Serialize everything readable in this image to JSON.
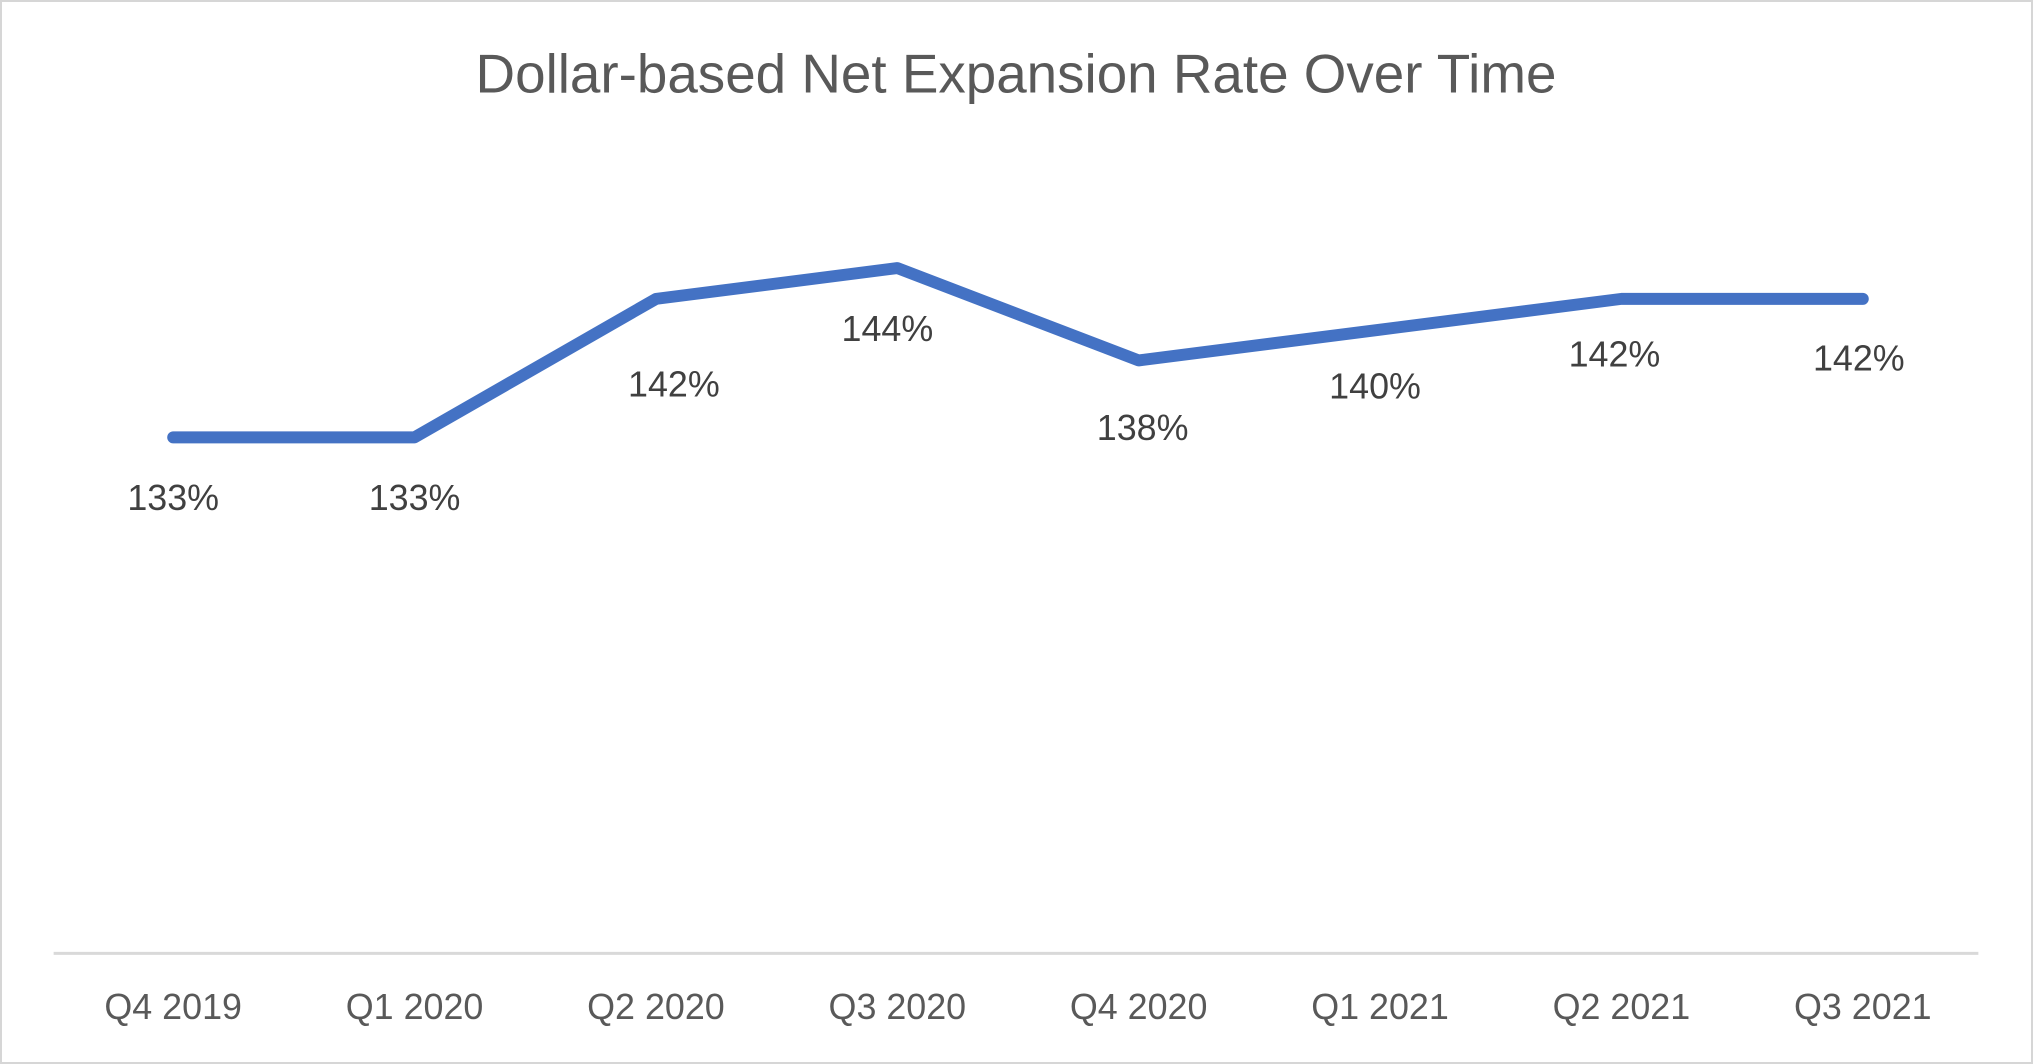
{
  "chart_data": {
    "type": "line",
    "title": "Dollar-based Net Expansion Rate Over Time",
    "categories": [
      "Q4 2019",
      "Q1 2020",
      "Q2 2020",
      "Q3 2020",
      "Q4 2020",
      "Q1 2021",
      "Q2 2021",
      "Q3 2021"
    ],
    "values": [
      133,
      133,
      142,
      144,
      138,
      140,
      142,
      142
    ],
    "data_labels": [
      "133%",
      "133%",
      "142%",
      "144%",
      "138%",
      "140%",
      "142%",
      "142%"
    ],
    "xlabel": "",
    "ylabel": "",
    "ylim": [
      125,
      150
    ],
    "y_axis_visible": false,
    "gridlines": false,
    "legend": "none",
    "data_label_position": "below-point",
    "colors": {
      "line": "#4472C4",
      "data_label": "#404040",
      "axis_label": "#595959",
      "title": "#595959",
      "axis_line": "#D9D9D9",
      "background": "#FFFFFF",
      "border": "#D6D6D6"
    }
  }
}
